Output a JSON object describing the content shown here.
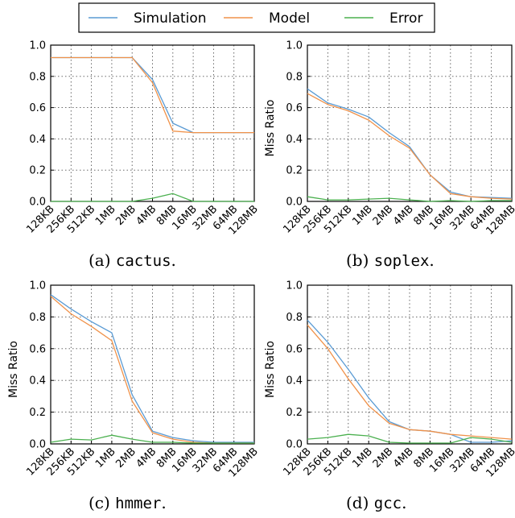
{
  "legend": [
    {
      "name": "Simulation",
      "color": "#5a9bd4"
    },
    {
      "name": "Model",
      "color": "#f0924a"
    },
    {
      "name": "Error",
      "color": "#4bb04f"
    }
  ],
  "chart_data": [
    {
      "type": "line",
      "panel": "a",
      "caption_prefix": "(a) ",
      "caption_code": "cactus",
      "caption_suffix": ".",
      "ylabel": "",
      "ylim": [
        0,
        1.0
      ],
      "yticks": [
        "0.0",
        "0.2",
        "0.4",
        "0.6",
        "0.8",
        "1.0"
      ],
      "categories": [
        "128KB",
        "256KB",
        "512KB",
        "1MB",
        "2MB",
        "4MB",
        "8MB",
        "16MB",
        "32MB",
        "64MB",
        "128MB"
      ],
      "series": [
        {
          "name": "Simulation",
          "values": [
            0.92,
            0.92,
            0.92,
            0.92,
            0.92,
            0.78,
            0.5,
            0.44,
            0.44,
            0.44,
            0.44
          ]
        },
        {
          "name": "Model",
          "values": [
            0.92,
            0.92,
            0.92,
            0.92,
            0.92,
            0.76,
            0.45,
            0.44,
            0.44,
            0.44,
            0.44
          ]
        },
        {
          "name": "Error",
          "values": [
            0.0,
            0.0,
            0.0,
            0.0,
            0.0,
            0.02,
            0.05,
            0.0,
            0.0,
            0.0,
            0.0
          ]
        }
      ]
    },
    {
      "type": "line",
      "panel": "b",
      "caption_prefix": "(b) ",
      "caption_code": "soplex",
      "caption_suffix": ".",
      "ylabel": "Miss Ratio",
      "ylim": [
        0,
        1.0
      ],
      "yticks": [
        "0.0",
        "0.2",
        "0.4",
        "0.6",
        "0.8",
        "1.0"
      ],
      "categories": [
        "128KB",
        "256KB",
        "512KB",
        "1MB",
        "2MB",
        "4MB",
        "8MB",
        "16MB",
        "32MB",
        "64MB",
        "128MB"
      ],
      "series": [
        {
          "name": "Simulation",
          "values": [
            0.72,
            0.63,
            0.59,
            0.54,
            0.44,
            0.35,
            0.17,
            0.06,
            0.03,
            0.025,
            0.02
          ]
        },
        {
          "name": "Model",
          "values": [
            0.69,
            0.62,
            0.58,
            0.52,
            0.42,
            0.34,
            0.17,
            0.05,
            0.03,
            0.02,
            0.015
          ]
        },
        {
          "name": "Error",
          "values": [
            0.03,
            0.01,
            0.01,
            0.015,
            0.02,
            0.01,
            0.0,
            0.005,
            0.0,
            0.005,
            0.005
          ]
        }
      ]
    },
    {
      "type": "line",
      "panel": "c",
      "caption_prefix": "(c) ",
      "caption_code": "hmmer",
      "caption_suffix": ".",
      "ylabel": "Miss Ratio",
      "ylim": [
        0,
        1.0
      ],
      "yticks": [
        "0.0",
        "0.2",
        "0.4",
        "0.6",
        "0.8",
        "1.0"
      ],
      "categories": [
        "128KB",
        "256KB",
        "512KB",
        "1MB",
        "2MB",
        "4MB",
        "8MB",
        "16MB",
        "32MB",
        "64MB",
        "128MB"
      ],
      "series": [
        {
          "name": "Simulation",
          "values": [
            0.94,
            0.85,
            0.77,
            0.7,
            0.31,
            0.08,
            0.04,
            0.02,
            0.01,
            0.01,
            0.01
          ]
        },
        {
          "name": "Model",
          "values": [
            0.93,
            0.82,
            0.74,
            0.65,
            0.27,
            0.07,
            0.03,
            0.01,
            0.005,
            0.005,
            0.005
          ]
        },
        {
          "name": "Error",
          "values": [
            0.01,
            0.03,
            0.025,
            0.055,
            0.03,
            0.01,
            0.01,
            0.005,
            0.005,
            0.005,
            0.005
          ]
        }
      ]
    },
    {
      "type": "line",
      "panel": "d",
      "caption_prefix": "(d) ",
      "caption_code": "gcc",
      "caption_suffix": ".",
      "ylabel": "Miss Ratio",
      "ylim": [
        0,
        1.0
      ],
      "yticks": [
        "0.0",
        "0.2",
        "0.4",
        "0.6",
        "0.8",
        "1.0"
      ],
      "categories": [
        "128KB",
        "256KB",
        "512KB",
        "1MB",
        "2MB",
        "4MB",
        "8MB",
        "16MB",
        "32MB",
        "64MB",
        "128MB"
      ],
      "series": [
        {
          "name": "Simulation",
          "values": [
            0.78,
            0.64,
            0.47,
            0.29,
            0.14,
            0.09,
            0.08,
            0.06,
            0.01,
            0.01,
            0.02
          ]
        },
        {
          "name": "Model",
          "values": [
            0.75,
            0.6,
            0.41,
            0.24,
            0.13,
            0.09,
            0.08,
            0.06,
            0.05,
            0.04,
            0.03
          ]
        },
        {
          "name": "Error",
          "values": [
            0.03,
            0.04,
            0.06,
            0.05,
            0.01,
            0.005,
            0.005,
            0.005,
            0.04,
            0.03,
            0.01
          ]
        }
      ]
    }
  ]
}
